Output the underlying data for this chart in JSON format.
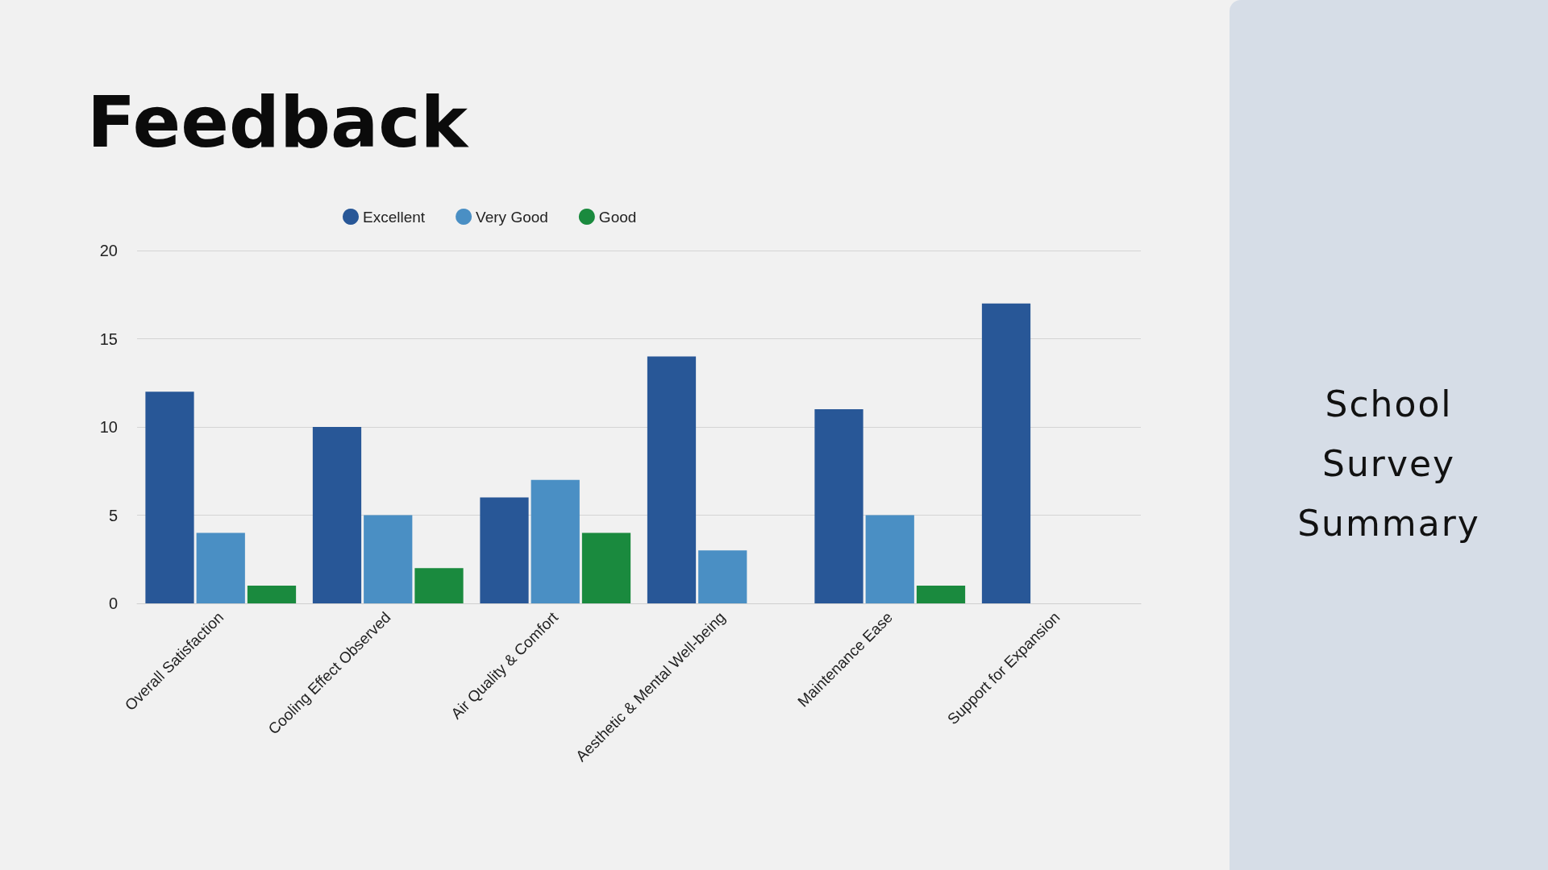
{
  "chart_data": {
    "type": "bar",
    "title": "Feedback",
    "subtitle": "School Survey Summary",
    "categories": [
      "Overall Satisfaction",
      "Cooling Effect Observed",
      "Air Quality & Comfort",
      "Aesthetic & Mental Well-being",
      "Maintenance Ease",
      "Support for Expansion"
    ],
    "series": [
      {
        "name": "Excellent",
        "color": "#285797",
        "values": [
          12,
          10,
          6,
          14,
          11,
          17
        ]
      },
      {
        "name": "Very Good",
        "color": "#4a8fc4",
        "values": [
          4,
          5,
          7,
          3,
          5,
          0
        ]
      },
      {
        "name": "Good",
        "color": "#1a8a3e",
        "values": [
          1,
          2,
          4,
          0,
          1,
          0
        ]
      }
    ],
    "ylim": [
      0,
      20
    ],
    "yticks": [
      0,
      5,
      10,
      15,
      20
    ],
    "grid": "y",
    "legend": "top"
  }
}
